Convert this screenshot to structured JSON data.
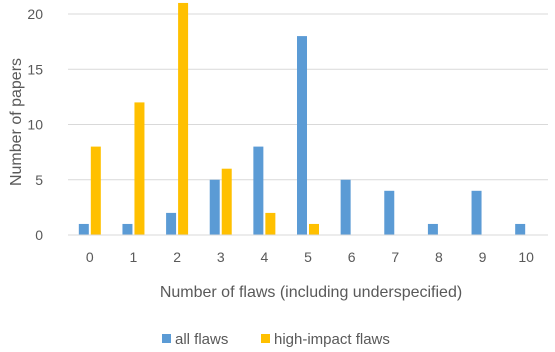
{
  "chart_data": {
    "type": "bar",
    "title": "",
    "xlabel": "Number of flaws (including underspecified)",
    "ylabel": "Number of papers",
    "categories": [
      "0",
      "1",
      "2",
      "3",
      "4",
      "5",
      "6",
      "7",
      "8",
      "9",
      "10"
    ],
    "series": [
      {
        "name": "all flaws",
        "color": "#5B9BD5",
        "values": [
          1,
          1,
          2,
          5,
          8,
          18,
          5,
          4,
          1,
          4,
          1
        ]
      },
      {
        "name": "high-impact flaws",
        "color": "#FFC000",
        "values": [
          8,
          12,
          21,
          6,
          2,
          1,
          0,
          0,
          0,
          0,
          0
        ]
      }
    ],
    "ylim": [
      0,
      20
    ],
    "yticks": [
      "0",
      "5",
      "10",
      "15",
      "20"
    ],
    "grid": true,
    "legend_position": "bottom"
  }
}
